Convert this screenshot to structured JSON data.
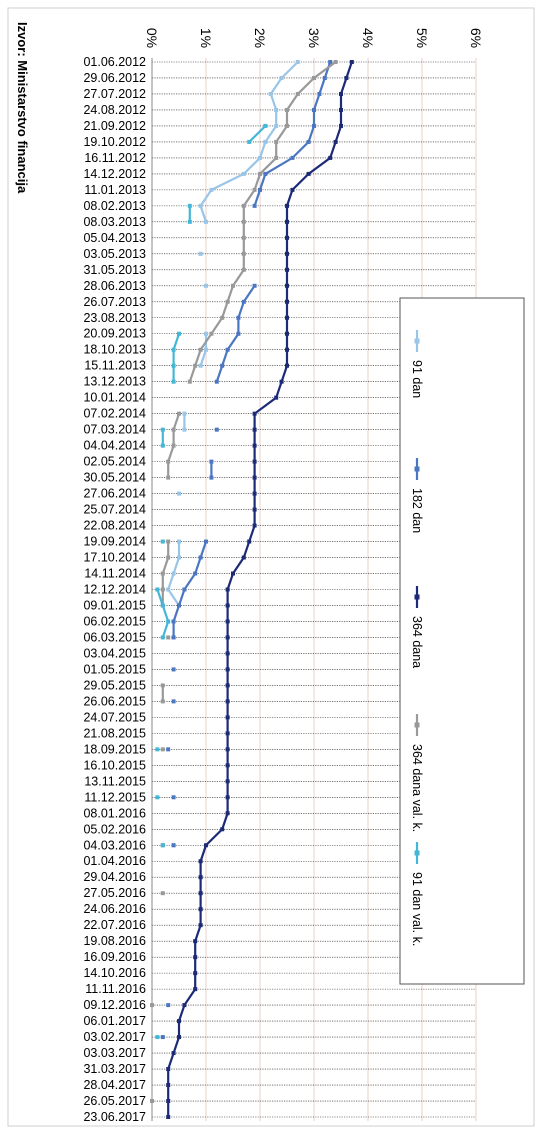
{
  "chart_data": {
    "type": "line",
    "orientation": "rotated-90-clockwise",
    "source_note": "Izvor: Ministarstvo financija",
    "value_axis": {
      "min": 0,
      "max": 6,
      "tick_step": 1,
      "tick_labels": [
        "0%",
        "1%",
        "2%",
        "3%",
        "4%",
        "5%",
        "6%"
      ]
    },
    "grid": true,
    "legend_position": "right",
    "date_labels": [
      "01.06.2012",
      "29.06.2012",
      "27.07.2012",
      "24.08.2012",
      "21.09.2012",
      "19.10.2012",
      "16.11.2012",
      "14.12.2012",
      "11.01.2013",
      "08.02.2013",
      "08.03.2013",
      "05.04.2013",
      "03.05.2013",
      "31.05.2013",
      "28.06.2013",
      "26.07.2013",
      "23.08.2013",
      "20.09.2013",
      "18.10.2013",
      "15.11.2013",
      "13.12.2013",
      "10.01.2014",
      "07.02.2014",
      "07.03.2014",
      "04.04.2014",
      "02.05.2014",
      "30.05.2014",
      "27.06.2014",
      "25.07.2014",
      "22.08.2014",
      "19.09.2014",
      "17.10.2014",
      "14.11.2014",
      "12.12.2014",
      "09.01.2015",
      "06.02.2015",
      "06.03.2015",
      "03.04.2015",
      "01.05.2015",
      "29.05.2015",
      "26.06.2015",
      "24.07.2015",
      "21.08.2015",
      "18.09.2015",
      "16.10.2015",
      "13.11.2015",
      "11.12.2015",
      "08.01.2016",
      "05.02.2016",
      "04.03.2016",
      "01.04.2016",
      "29.04.2016",
      "27.05.2016",
      "24.06.2016",
      "22.07.2016",
      "19.08.2016",
      "16.09.2016",
      "14.10.2016",
      "11.11.2016",
      "09.12.2016",
      "06.01.2017",
      "03.02.2017",
      "03.03.2017",
      "31.03.2017",
      "28.04.2017",
      "26.05.2017",
      "23.06.2017"
    ],
    "series": [
      {
        "name": "91 dan",
        "color": "#99c6e8",
        "values": [
          2.7,
          2.4,
          2.2,
          2.3,
          2.3,
          2.1,
          2.0,
          1.7,
          1.1,
          0.9,
          1.0,
          null,
          0.9,
          null,
          1.0,
          null,
          null,
          1.0,
          1.0,
          0.9,
          null,
          null,
          0.6,
          0.6,
          null,
          null,
          null,
          0.5,
          null,
          null,
          0.5,
          0.5,
          0.4,
          0.3,
          0.5,
          null,
          0.4,
          null,
          null,
          null,
          null,
          null,
          null,
          null,
          null,
          null,
          null,
          null,
          null,
          0.4,
          null,
          null,
          null,
          null,
          null,
          null,
          null,
          null,
          null,
          null,
          null,
          null,
          null,
          null,
          null,
          null,
          null
        ]
      },
      {
        "name": "182 dan",
        "color": "#4b76c2",
        "values": [
          3.3,
          3.2,
          3.1,
          3.0,
          3.0,
          2.9,
          2.6,
          2.1,
          2.0,
          1.9,
          null,
          null,
          null,
          null,
          1.9,
          1.7,
          1.6,
          1.6,
          1.4,
          1.3,
          1.2,
          null,
          null,
          1.2,
          null,
          1.1,
          1.1,
          null,
          null,
          null,
          1.0,
          0.9,
          0.8,
          0.6,
          0.5,
          0.4,
          0.4,
          null,
          0.4,
          null,
          0.4,
          null,
          null,
          0.3,
          null,
          null,
          0.4,
          null,
          null,
          0.4,
          null,
          null,
          null,
          null,
          null,
          null,
          null,
          null,
          null,
          0.3,
          null,
          0.2,
          null,
          null,
          null,
          null,
          null
        ]
      },
      {
        "name": "364 dana",
        "color": "#1c2a78",
        "values": [
          3.7,
          3.6,
          3.5,
          3.5,
          3.5,
          3.4,
          3.3,
          2.9,
          2.6,
          2.5,
          2.5,
          2.5,
          2.5,
          2.5,
          2.5,
          2.5,
          2.5,
          2.5,
          2.5,
          2.5,
          2.4,
          2.3,
          1.9,
          1.9,
          1.9,
          1.9,
          1.9,
          1.9,
          1.9,
          1.9,
          1.8,
          1.7,
          1.5,
          1.4,
          1.4,
          1.4,
          1.4,
          1.4,
          1.4,
          1.4,
          1.4,
          1.4,
          1.4,
          1.4,
          1.4,
          1.4,
          1.4,
          1.4,
          1.3,
          1.0,
          0.9,
          0.9,
          0.9,
          0.9,
          0.9,
          0.8,
          0.8,
          0.8,
          0.8,
          0.6,
          0.5,
          0.5,
          0.4,
          0.3,
          0.3,
          0.3,
          0.3
        ]
      },
      {
        "name": "364 dana  val. k.",
        "color": "#999999",
        "values": [
          3.4,
          3.0,
          2.7,
          2.5,
          2.5,
          2.3,
          2.3,
          2.0,
          1.9,
          1.7,
          1.7,
          1.7,
          1.7,
          1.7,
          1.5,
          1.4,
          1.3,
          1.1,
          0.9,
          0.8,
          0.7,
          null,
          0.5,
          0.4,
          0.4,
          0.3,
          0.3,
          null,
          null,
          null,
          0.3,
          0.3,
          0.2,
          0.2,
          0.2,
          null,
          0.3,
          null,
          null,
          0.2,
          0.2,
          null,
          null,
          0.2,
          null,
          null,
          null,
          null,
          null,
          0.2,
          null,
          null,
          0.2,
          null,
          null,
          null,
          null,
          null,
          null,
          0.0,
          null,
          null,
          null,
          null,
          null,
          0.0,
          null
        ]
      },
      {
        "name": "91 dan val. k.",
        "color": "#44b6d6",
        "values": [
          null,
          null,
          null,
          null,
          2.1,
          1.8,
          null,
          null,
          null,
          0.7,
          0.7,
          null,
          null,
          null,
          null,
          null,
          null,
          0.5,
          0.4,
          0.4,
          0.4,
          null,
          null,
          0.2,
          0.2,
          null,
          null,
          null,
          null,
          null,
          0.2,
          null,
          null,
          0.1,
          0.2,
          0.3,
          0.2,
          null,
          null,
          null,
          null,
          null,
          null,
          0.1,
          null,
          null,
          0.1,
          null,
          null,
          0.2,
          null,
          null,
          null,
          null,
          null,
          null,
          null,
          null,
          null,
          null,
          null,
          0.1,
          null,
          null,
          null,
          null,
          null
        ]
      }
    ]
  }
}
